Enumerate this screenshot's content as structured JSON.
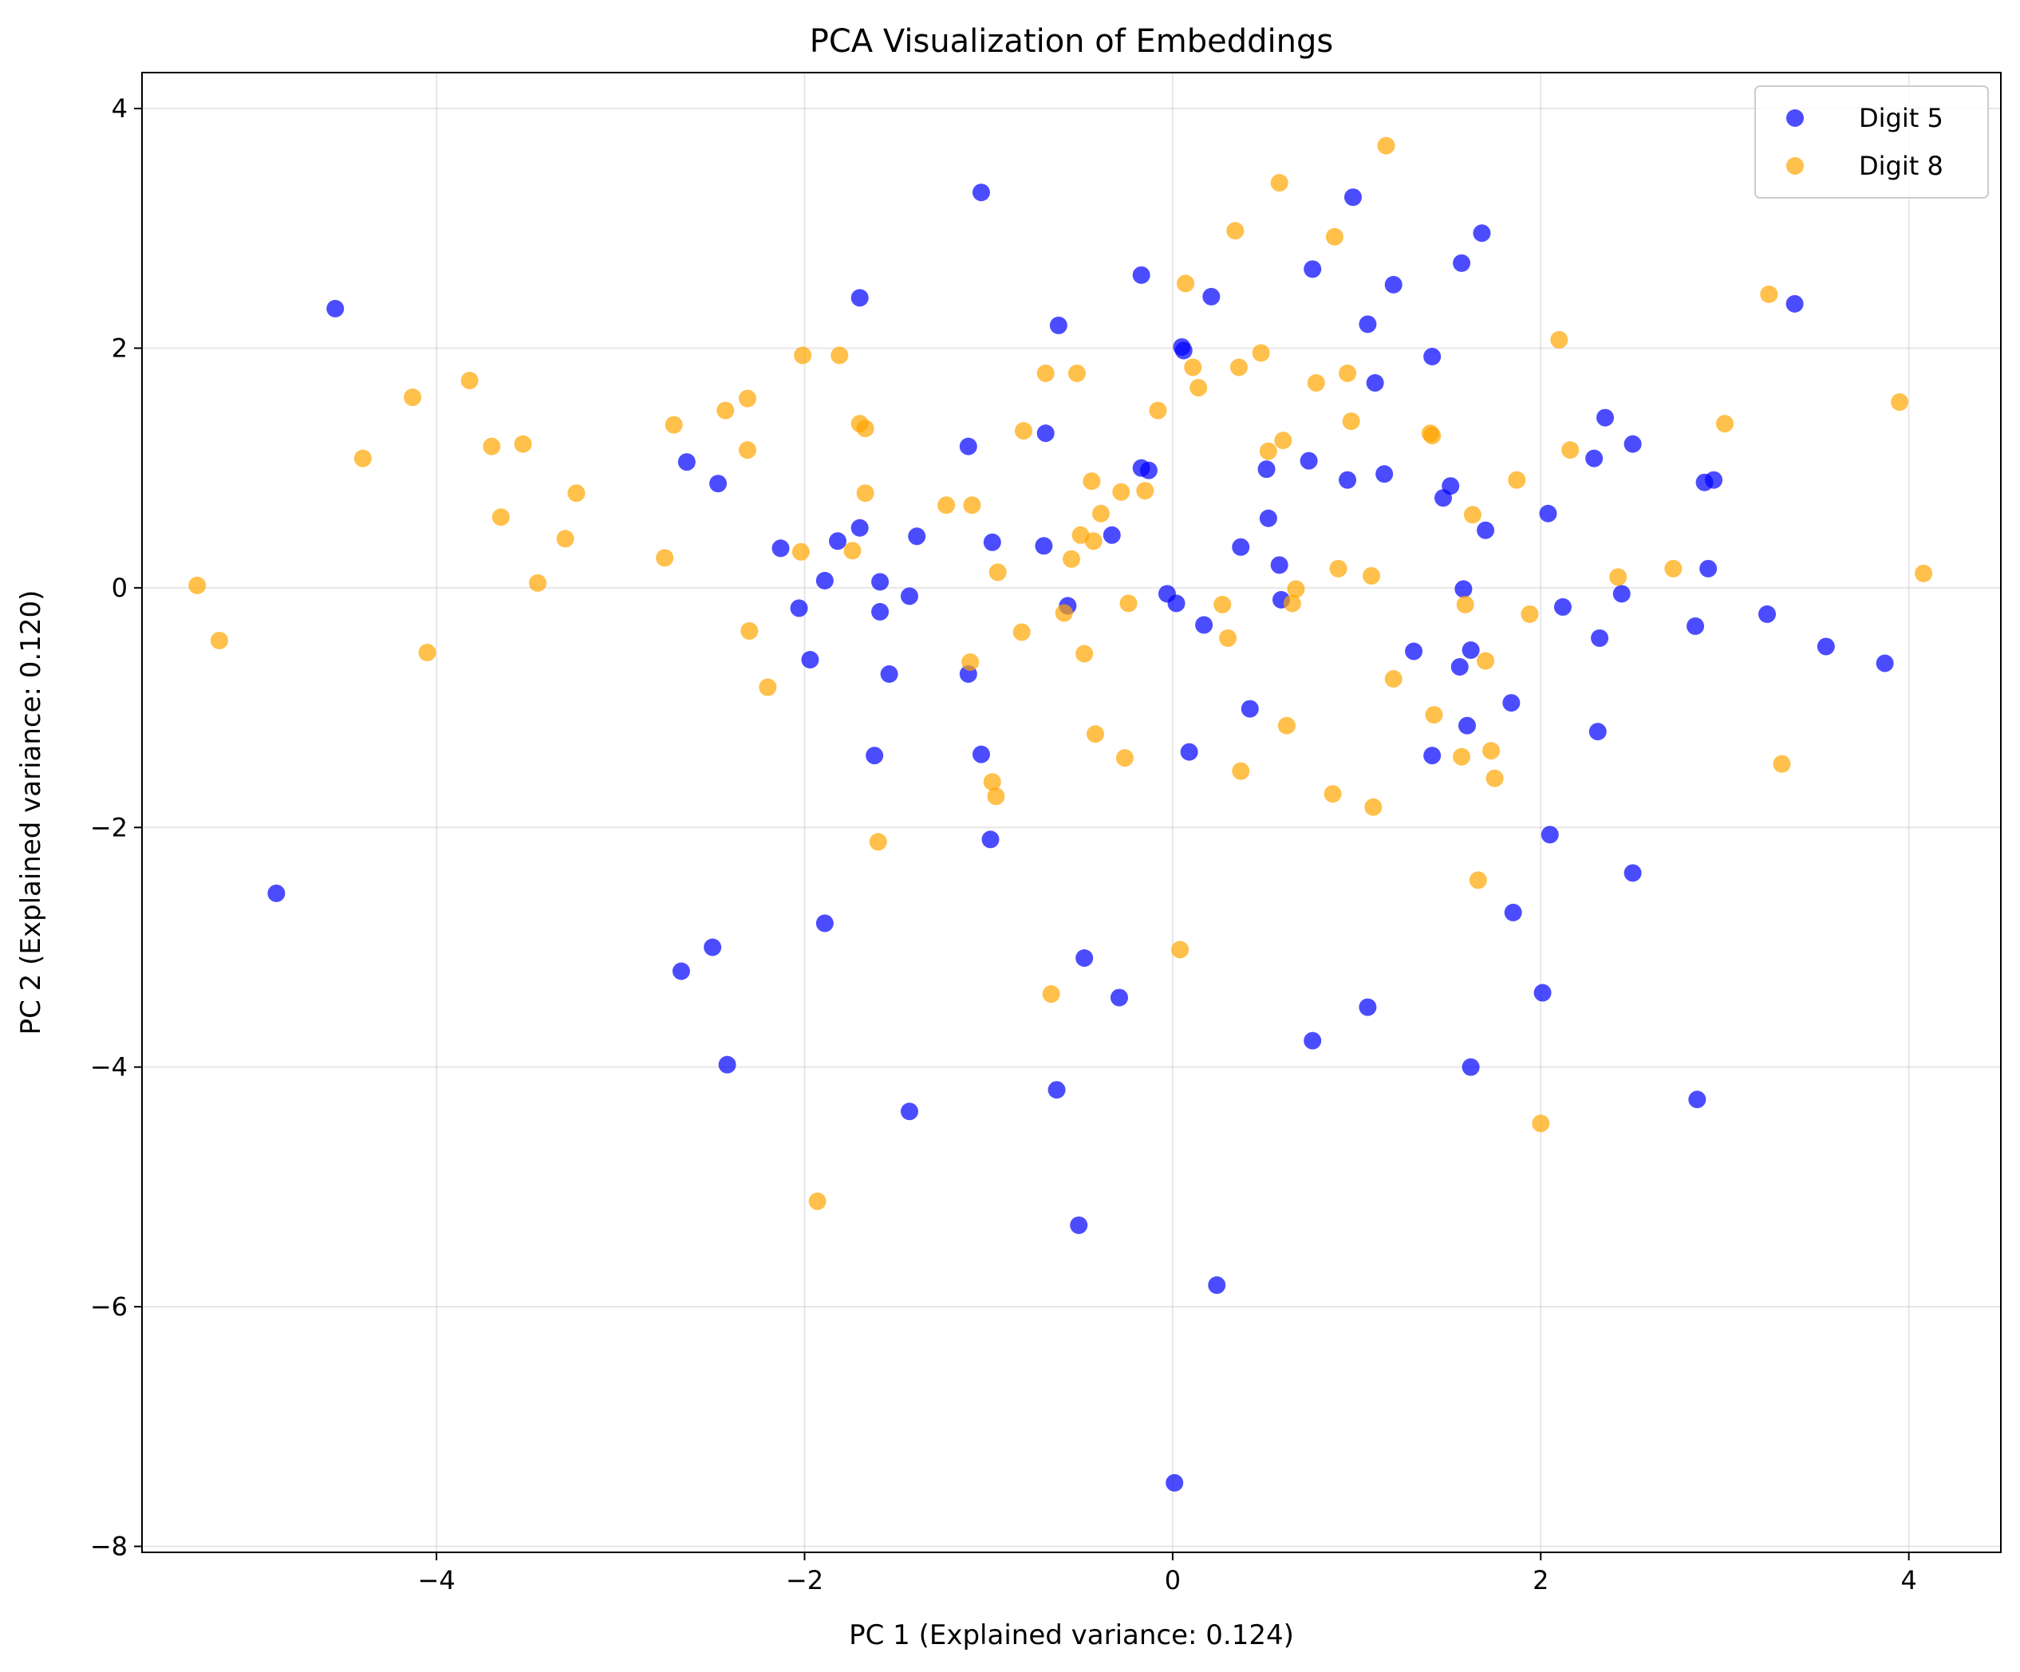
{
  "chart_data": {
    "type": "scatter",
    "title": "PCA Visualization of Embeddings",
    "xlabel": "PC 1 (Explained variance: 0.124)",
    "ylabel": "PC 2 (Explained variance: 0.120)",
    "xlim": [
      -5.6,
      4.5
    ],
    "ylim": [
      -8.05,
      4.3
    ],
    "xticks": [
      -4,
      -2,
      0,
      2,
      4
    ],
    "yticks": [
      -8,
      -6,
      -4,
      -2,
      0,
      2,
      4
    ],
    "grid": true,
    "legend_position": "top-right",
    "series": [
      {
        "name": "Digit 5",
        "color": "#0000ff",
        "points": [
          [
            -4.55,
            2.33
          ],
          [
            -4.87,
            -2.55
          ],
          [
            -2.64,
            1.05
          ],
          [
            -2.47,
            0.87
          ],
          [
            -2.67,
            -3.2
          ],
          [
            -2.5,
            -3.0
          ],
          [
            -2.42,
            -3.98
          ],
          [
            -2.13,
            0.33
          ],
          [
            -2.03,
            -0.17
          ],
          [
            -1.97,
            -0.6
          ],
          [
            -1.89,
            0.06
          ],
          [
            -1.82,
            0.39
          ],
          [
            -1.89,
            -2.8
          ],
          [
            -1.7,
            2.42
          ],
          [
            -1.7,
            0.5
          ],
          [
            -1.59,
            0.05
          ],
          [
            -1.59,
            -0.2
          ],
          [
            -1.62,
            -1.4
          ],
          [
            -1.54,
            -0.72
          ],
          [
            -1.43,
            -0.07
          ],
          [
            -1.39,
            0.43
          ],
          [
            -1.43,
            -4.37
          ],
          [
            -1.11,
            1.18
          ],
          [
            -1.11,
            -0.72
          ],
          [
            -1.04,
            3.3
          ],
          [
            -1.04,
            -1.39
          ],
          [
            -0.98,
            0.38
          ],
          [
            -0.99,
            -2.1
          ],
          [
            -0.69,
            1.29
          ],
          [
            -0.7,
            0.35
          ],
          [
            -0.62,
            2.19
          ],
          [
            -0.57,
            -0.15
          ],
          [
            -0.48,
            -3.09
          ],
          [
            -0.63,
            -4.19
          ],
          [
            -0.51,
            -5.32
          ],
          [
            -0.33,
            0.44
          ],
          [
            -0.29,
            -3.42
          ],
          [
            -0.17,
            2.61
          ],
          [
            -0.17,
            1.0
          ],
          [
            -0.13,
            0.98
          ],
          [
            -0.03,
            -0.05
          ],
          [
            0.02,
            -0.13
          ],
          [
            0.05,
            2.01
          ],
          [
            0.06,
            1.98
          ],
          [
            0.09,
            -1.37
          ],
          [
            0.17,
            -0.31
          ],
          [
            0.21,
            2.43
          ],
          [
            0.24,
            -5.82
          ],
          [
            0.37,
            0.34
          ],
          [
            0.42,
            -1.01
          ],
          [
            0.51,
            0.99
          ],
          [
            0.52,
            0.58
          ],
          [
            0.58,
            0.19
          ],
          [
            0.59,
            -0.1
          ],
          [
            0.74,
            1.06
          ],
          [
            0.76,
            2.66
          ],
          [
            0.76,
            -3.78
          ],
          [
            0.95,
            0.9
          ],
          [
            0.98,
            3.26
          ],
          [
            1.06,
            2.2
          ],
          [
            1.1,
            1.71
          ],
          [
            1.15,
            0.95
          ],
          [
            1.2,
            2.53
          ],
          [
            1.06,
            -3.5
          ],
          [
            1.31,
            -0.53
          ],
          [
            1.41,
            1.93
          ],
          [
            1.41,
            -1.4
          ],
          [
            1.47,
            0.75
          ],
          [
            1.51,
            0.85
          ],
          [
            1.56,
            -0.66
          ],
          [
            1.57,
            2.71
          ],
          [
            1.58,
            -0.01
          ],
          [
            1.6,
            -1.15
          ],
          [
            1.62,
            -0.52
          ],
          [
            1.62,
            -4.0
          ],
          [
            1.68,
            2.96
          ],
          [
            1.7,
            0.48
          ],
          [
            1.84,
            -0.96
          ],
          [
            1.85,
            -2.71
          ],
          [
            2.01,
            -3.38
          ],
          [
            2.04,
            0.62
          ],
          [
            2.05,
            -2.06
          ],
          [
            2.12,
            -0.16
          ],
          [
            2.29,
            1.08
          ],
          [
            2.31,
            -1.2
          ],
          [
            2.32,
            -0.42
          ],
          [
            2.35,
            1.42
          ],
          [
            2.44,
            -0.05
          ],
          [
            2.5,
            1.2
          ],
          [
            2.5,
            -2.38
          ],
          [
            2.84,
            -0.32
          ],
          [
            2.85,
            -4.27
          ],
          [
            2.89,
            0.88
          ],
          [
            2.91,
            0.16
          ],
          [
            2.94,
            0.9
          ],
          [
            3.23,
            -0.22
          ],
          [
            3.38,
            2.37
          ],
          [
            3.55,
            -0.49
          ],
          [
            3.87,
            -0.63
          ],
          [
            0.01,
            -7.47
          ]
        ]
      },
      {
        "name": "Digit 8",
        "color": "#ffa500",
        "points": [
          [
            -5.3,
            0.02
          ],
          [
            -5.18,
            -0.44
          ],
          [
            -4.4,
            1.08
          ],
          [
            -4.13,
            1.59
          ],
          [
            -4.05,
            -0.54
          ],
          [
            -3.82,
            1.73
          ],
          [
            -3.7,
            1.18
          ],
          [
            -3.65,
            0.59
          ],
          [
            -3.53,
            1.2
          ],
          [
            -3.45,
            0.04
          ],
          [
            -3.3,
            0.41
          ],
          [
            -3.24,
            0.79
          ],
          [
            -2.76,
            0.25
          ],
          [
            -2.71,
            1.36
          ],
          [
            -2.43,
            1.48
          ],
          [
            -2.31,
            1.58
          ],
          [
            -2.31,
            1.15
          ],
          [
            -2.3,
            -0.36
          ],
          [
            -2.2,
            -0.83
          ],
          [
            -2.01,
            1.94
          ],
          [
            -2.02,
            0.3
          ],
          [
            -1.93,
            -5.12
          ],
          [
            -1.81,
            1.94
          ],
          [
            -1.74,
            0.31
          ],
          [
            -1.7,
            1.37
          ],
          [
            -1.67,
            1.33
          ],
          [
            -1.67,
            0.79
          ],
          [
            -1.6,
            -2.12
          ],
          [
            -1.23,
            0.69
          ],
          [
            -1.09,
            0.69
          ],
          [
            -1.1,
            -0.62
          ],
          [
            -0.98,
            -1.62
          ],
          [
            -0.96,
            -1.74
          ],
          [
            -0.95,
            0.13
          ],
          [
            -0.81,
            1.31
          ],
          [
            -0.82,
            -0.37
          ],
          [
            -0.69,
            1.79
          ],
          [
            -0.66,
            -3.39
          ],
          [
            -0.59,
            -0.21
          ],
          [
            -0.55,
            0.24
          ],
          [
            -0.52,
            1.79
          ],
          [
            -0.5,
            0.44
          ],
          [
            -0.48,
            -0.55
          ],
          [
            -0.44,
            0.89
          ],
          [
            -0.43,
            0.39
          ],
          [
            -0.42,
            -1.22
          ],
          [
            -0.39,
            0.62
          ],
          [
            -0.28,
            0.8
          ],
          [
            -0.26,
            -1.42
          ],
          [
            -0.24,
            -0.13
          ],
          [
            -0.15,
            0.81
          ],
          [
            -0.08,
            1.48
          ],
          [
            0.04,
            -3.02
          ],
          [
            0.07,
            2.54
          ],
          [
            0.11,
            1.84
          ],
          [
            0.14,
            1.67
          ],
          [
            0.27,
            -0.14
          ],
          [
            0.3,
            -0.42
          ],
          [
            0.34,
            2.98
          ],
          [
            0.36,
            1.84
          ],
          [
            0.37,
            -1.53
          ],
          [
            0.48,
            1.96
          ],
          [
            0.52,
            1.14
          ],
          [
            0.58,
            3.38
          ],
          [
            0.6,
            1.23
          ],
          [
            0.62,
            -1.15
          ],
          [
            0.65,
            -0.13
          ],
          [
            0.67,
            -0.01
          ],
          [
            0.78,
            1.71
          ],
          [
            0.88,
            2.93
          ],
          [
            0.87,
            -1.72
          ],
          [
            0.9,
            0.16
          ],
          [
            0.95,
            1.79
          ],
          [
            0.97,
            1.39
          ],
          [
            1.08,
            0.1
          ],
          [
            1.09,
            -1.83
          ],
          [
            1.16,
            3.69
          ],
          [
            1.2,
            -0.76
          ],
          [
            1.4,
            1.29
          ],
          [
            1.41,
            1.27
          ],
          [
            1.42,
            -1.06
          ],
          [
            1.57,
            -1.41
          ],
          [
            1.59,
            -0.14
          ],
          [
            1.63,
            0.61
          ],
          [
            1.66,
            -2.44
          ],
          [
            1.7,
            -0.61
          ],
          [
            1.73,
            -1.36
          ],
          [
            1.75,
            -1.59
          ],
          [
            1.87,
            0.9
          ],
          [
            1.94,
            -0.22
          ],
          [
            2.0,
            -4.47
          ],
          [
            2.1,
            2.07
          ],
          [
            2.16,
            1.15
          ],
          [
            2.42,
            0.09
          ],
          [
            2.72,
            0.16
          ],
          [
            3.0,
            1.37
          ],
          [
            3.24,
            2.45
          ],
          [
            3.31,
            -1.47
          ],
          [
            3.95,
            1.55
          ],
          [
            4.08,
            0.12
          ]
        ]
      }
    ]
  }
}
